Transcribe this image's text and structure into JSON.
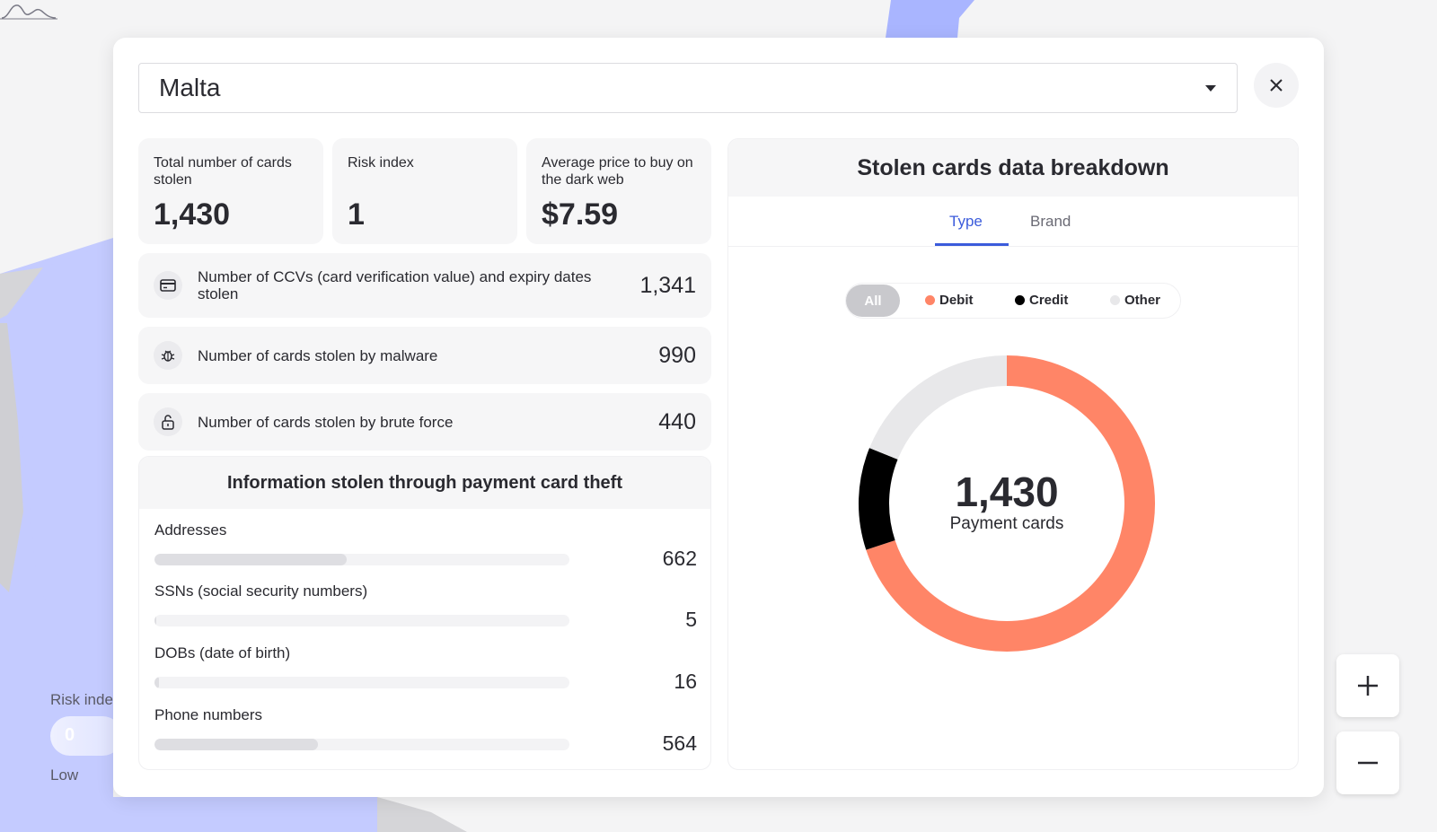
{
  "selector": {
    "country": "Malta"
  },
  "stats": [
    {
      "label": "Total number of cards stolen",
      "value": "1,430"
    },
    {
      "label": "Risk index",
      "value": "1"
    },
    {
      "label": "Average price to buy on the dark web",
      "value": "$7.59"
    }
  ],
  "rows": [
    {
      "icon": "credit-card-icon",
      "label": "Number of CCVs (card verification value) and expiry dates stolen",
      "value": "1,341"
    },
    {
      "icon": "bug-icon",
      "label": "Number of cards stolen by malware",
      "value": "990"
    },
    {
      "icon": "unlock-icon",
      "label": "Number of cards stolen by brute force",
      "value": "440"
    }
  ],
  "info": {
    "title": "Information stolen through payment card theft",
    "items": [
      {
        "label": "Addresses",
        "value": "662",
        "fraction": 0.463
      },
      {
        "label": "SSNs (social security numbers)",
        "value": "5",
        "fraction": 0.004
      },
      {
        "label": "DOBs (date of birth)",
        "value": "16",
        "fraction": 0.011
      },
      {
        "label": "Phone numbers",
        "value": "564",
        "fraction": 0.394
      }
    ]
  },
  "breakdown": {
    "title": "Stolen cards data breakdown",
    "tabs": [
      "Type",
      "Brand"
    ],
    "active_tab": "Type",
    "filters": [
      "All",
      "Debit",
      "Credit",
      "Other"
    ],
    "center_value": "1,430",
    "center_label": "Payment cards"
  },
  "chart_data": {
    "type": "pie",
    "categories": [
      "Debit",
      "Credit",
      "Other"
    ],
    "values": [
      1000,
      160,
      270
    ],
    "colors": [
      "#ff8567",
      "#000000",
      "#e8e8ea"
    ]
  },
  "legend": {
    "title": "Risk inde",
    "pill": "0",
    "low": "Low"
  },
  "zoom": {
    "in": "zoom-in",
    "out": "zoom-out"
  }
}
